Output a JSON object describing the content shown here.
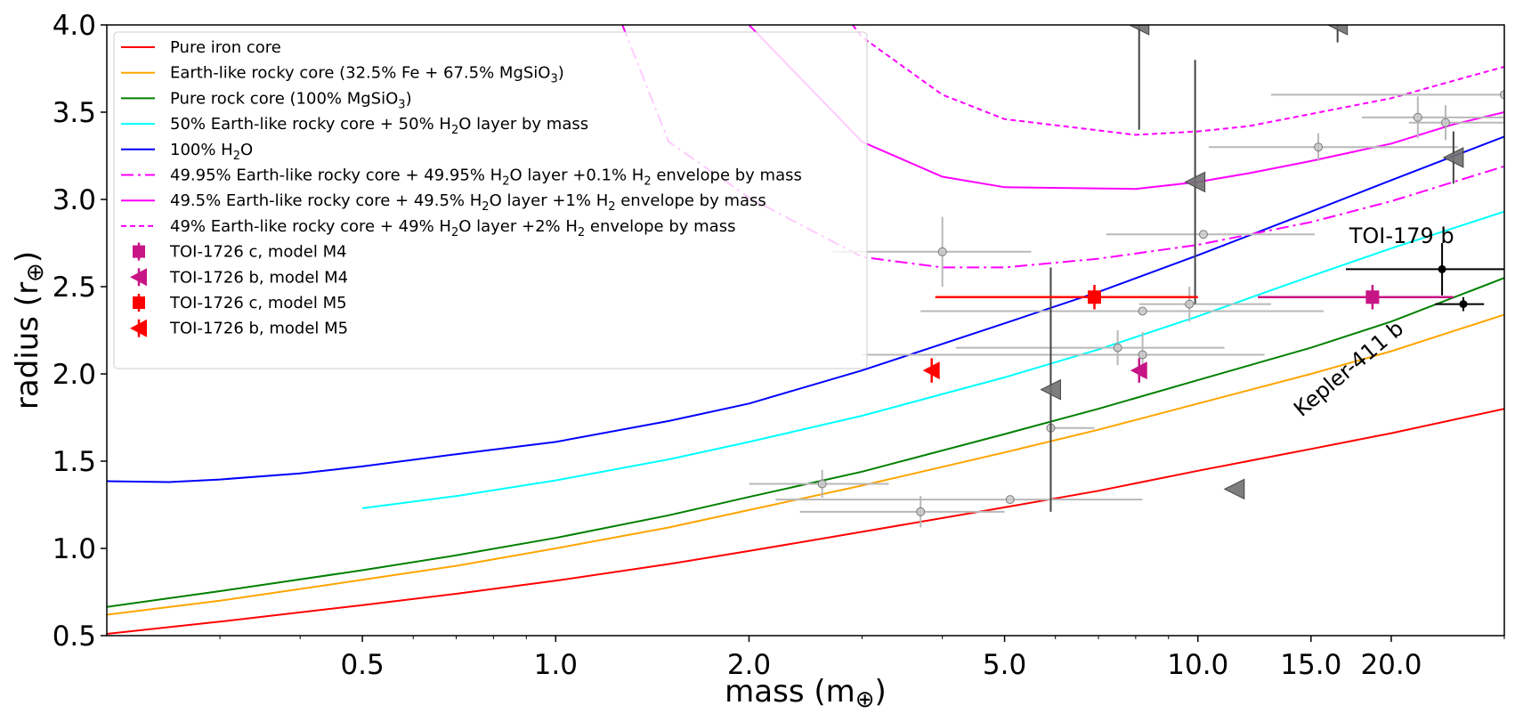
{
  "chart_data": {
    "type": "line",
    "xscale": "log",
    "xlim": [
      0.2,
      30
    ],
    "ylim": [
      0.5,
      4.0
    ],
    "xlabel": "mass (m",
    "xlabel_symbol": "⊕",
    "xlabel_close": ")",
    "ylabel": "radius (r",
    "ylabel_symbol": "⊕",
    "ylabel_close": ")",
    "xticks": [
      0.5,
      1.0,
      2.0,
      5.0,
      10.0,
      15.0,
      20.0
    ],
    "xtick_labels": [
      "0.5",
      "1.0",
      "2.0",
      "5.0",
      "10.0",
      "15.0",
      "20.0"
    ],
    "yticks": [
      0.5,
      1.0,
      1.5,
      2.0,
      2.5,
      3.0,
      3.5,
      4.0
    ],
    "ytick_labels": [
      "0.5",
      "1.0",
      "1.5",
      "2.0",
      "2.5",
      "3.0",
      "3.5",
      "4.0"
    ],
    "legend_position": "top-left",
    "series": [
      {
        "name": "Pure iron core",
        "legend": {
          "pre": "Pure iron core"
        },
        "color": "#ff0000",
        "dash": "",
        "x": [
          0.2,
          0.3,
          0.5,
          0.7,
          1.0,
          1.5,
          2.0,
          3.0,
          5.0,
          7.0,
          10.0,
          15.0,
          20.0,
          30.0
        ],
        "y": [
          0.51,
          0.58,
          0.675,
          0.74,
          0.815,
          0.91,
          0.985,
          1.095,
          1.235,
          1.33,
          1.445,
          1.57,
          1.66,
          1.8
        ]
      },
      {
        "name": "Earth-like rocky core",
        "legend": {
          "pre": "Earth-like rocky core (32.5% Fe + 67.5% MgSiO",
          "sub": "3",
          "post": ")"
        },
        "color": "#ffa500",
        "dash": "",
        "x": [
          0.2,
          0.3,
          0.5,
          0.7,
          1.0,
          1.5,
          2.0,
          3.0,
          5.0,
          7.0,
          10.0,
          15.0,
          20.0,
          30.0
        ],
        "y": [
          0.62,
          0.7,
          0.82,
          0.9,
          1.0,
          1.12,
          1.22,
          1.36,
          1.55,
          1.68,
          1.83,
          2.0,
          2.13,
          2.34
        ]
      },
      {
        "name": "Pure rock core",
        "legend": {
          "pre": "Pure rock core (100% MgSiO",
          "sub": "3",
          "post": ")"
        },
        "color": "#008000",
        "dash": "",
        "x": [
          0.2,
          0.3,
          0.5,
          0.7,
          1.0,
          1.5,
          2.0,
          3.0,
          5.0,
          7.0,
          10.0,
          15.0,
          20.0,
          30.0
        ],
        "y": [
          0.665,
          0.755,
          0.875,
          0.96,
          1.06,
          1.19,
          1.295,
          1.44,
          1.655,
          1.8,
          1.965,
          2.15,
          2.3,
          2.55
        ]
      },
      {
        "name": "50% Earth-like rocky core + 50% H2O",
        "legend": {
          "pre": "50% Earth-like rocky core + 50% H",
          "sub": "2",
          "post": "O layer by mass"
        },
        "color": "#00ffff",
        "dash": "",
        "x": [
          0.5,
          0.7,
          1.0,
          1.5,
          2.0,
          3.0,
          5.0,
          7.0,
          10.0,
          15.0,
          20.0,
          30.0
        ],
        "y": [
          1.23,
          1.3,
          1.39,
          1.51,
          1.61,
          1.76,
          1.98,
          2.14,
          2.33,
          2.56,
          2.72,
          2.93
        ]
      },
      {
        "name": "100% H2O",
        "legend": {
          "pre": "100% H",
          "sub": "2",
          "post": "O"
        },
        "color": "#0000ff",
        "dash": "",
        "x": [
          0.2,
          0.25,
          0.3,
          0.4,
          0.5,
          0.7,
          1.0,
          1.5,
          2.0,
          3.0,
          5.0,
          7.0,
          10.0,
          15.0,
          20.0,
          30.0
        ],
        "y": [
          1.385,
          1.38,
          1.395,
          1.43,
          1.47,
          1.54,
          1.61,
          1.73,
          1.83,
          2.02,
          2.29,
          2.47,
          2.68,
          2.93,
          3.11,
          3.36
        ]
      },
      {
        "name": "+0.1% H2 envelope",
        "legend": {
          "pre": "49.95% Earth-like rocky core + 49.95% H",
          "sub": "2",
          "mid": "O layer +0.1% H",
          "sub2": "2",
          "post": " envelope by mass"
        },
        "color": "#ff00ff",
        "dash": "14,5,3,5",
        "x": [
          1.27,
          1.5,
          2.0,
          3.0,
          4.0,
          5.0,
          7.0,
          10.0,
          15.0,
          20.0,
          30.0
        ],
        "y": [
          4.0,
          3.33,
          3.01,
          2.67,
          2.61,
          2.61,
          2.66,
          2.74,
          2.87,
          2.99,
          3.19
        ]
      },
      {
        "name": "+1% H2 envelope",
        "legend": {
          "pre": "49.5% Earth-like rocky core + 49.5% H",
          "sub": "2",
          "mid": "O layer +1% H",
          "sub2": "2",
          "post": " envelope by mass"
        },
        "color": "#ff00ff",
        "dash": "",
        "x": [
          2.0,
          3.0,
          4.0,
          5.0,
          8.0,
          10.0,
          12.0,
          15.0,
          20.0,
          25.0,
          30.0
        ],
        "y": [
          4.0,
          3.33,
          3.13,
          3.07,
          3.06,
          3.1,
          3.15,
          3.22,
          3.32,
          3.43,
          3.5
        ]
      },
      {
        "name": "+2% H2 envelope",
        "legend": {
          "pre": "49% Earth-like rocky core + 49% H",
          "sub": "2",
          "mid": "O layer +2% H",
          "sub2": "2",
          "post": " envelope by mass"
        },
        "color": "#ff00ff",
        "dash": "6,4",
        "x": [
          2.9,
          3.0,
          4.0,
          5.0,
          8.0,
          10.0,
          12.0,
          15.0,
          20.0,
          25.0,
          30.0
        ],
        "y": [
          4.0,
          3.93,
          3.6,
          3.46,
          3.37,
          3.39,
          3.42,
          3.49,
          3.58,
          3.68,
          3.76
        ]
      }
    ],
    "toi_points": [
      {
        "name": "TOI-1726 c, model M4",
        "legend": {
          "pre": "TOI-1726 c, model M4"
        },
        "marker": "square",
        "color": "#c71585",
        "x": 18.7,
        "y": 2.44,
        "xerr": [
          6.3,
          6.3
        ],
        "yerr": [
          0.07,
          0.07
        ]
      },
      {
        "name": "TOI-1726 b, model M4",
        "legend": {
          "pre": "TOI-1726 b, model M4"
        },
        "marker": "triangle-left",
        "color": "#c71585",
        "x": 8.1,
        "y": 2.02,
        "xerr": [
          0,
          0
        ],
        "yerr": [
          0.07,
          0.07
        ]
      },
      {
        "name": "TOI-1726 c, model M5",
        "legend": {
          "pre": "TOI-1726 c, model M5"
        },
        "marker": "square",
        "color": "#ff0000",
        "x": 6.9,
        "y": 2.44,
        "xerr": [
          3.0,
          3.1
        ],
        "yerr": [
          0.07,
          0.07
        ]
      },
      {
        "name": "TOI-1726 b, model M5",
        "legend": {
          "pre": "TOI-1726 b, model M5"
        },
        "marker": "triangle-left",
        "color": "#ff0000",
        "x": 3.85,
        "y": 2.02,
        "xerr": [
          0,
          0
        ],
        "yerr": [
          0.07,
          0.07
        ]
      }
    ],
    "grey_points": [
      {
        "x": 2.6,
        "y": 1.37,
        "xerr": [
          0.6,
          0.7
        ],
        "yerr": [
          0.08,
          0.08
        ]
      },
      {
        "x": 3.7,
        "y": 1.21,
        "xerr": [
          1.3,
          1.3
        ],
        "yerr": [
          0.09,
          0.09
        ]
      },
      {
        "x": 5.1,
        "y": 1.28,
        "xerr": [
          2.9,
          3.1
        ],
        "yerr": [
          0.0,
          0.0
        ]
      },
      {
        "x": 4.0,
        "y": 2.7,
        "xerr": [
          1.3,
          1.5
        ],
        "yerr": [
          0.2,
          0.2
        ]
      },
      {
        "x": 5.9,
        "y": 1.69,
        "xerr": [
          0.0,
          1.0
        ],
        "yerr": [
          0.08,
          0.08
        ]
      },
      {
        "x": 7.5,
        "y": 2.15,
        "xerr": [
          3.3,
          3.5
        ],
        "yerr": [
          0.1,
          0.1
        ]
      },
      {
        "x": 8.2,
        "y": 2.11,
        "xerr": [
          5.2,
          4.5
        ],
        "yerr": [
          0.13,
          0.13
        ]
      },
      {
        "x": 8.2,
        "y": 2.36,
        "xerr": [
          4.5,
          7.5
        ],
        "yerr": [
          0.0,
          0.0
        ]
      },
      {
        "x": 9.7,
        "y": 2.4,
        "xerr": [
          1.6,
          3.3
        ],
        "yerr": [
          0.1,
          0.1
        ]
      },
      {
        "x": 10.2,
        "y": 2.8,
        "xerr": [
          3.0,
          5.0
        ],
        "yerr": [
          0.0,
          0.0
        ]
      },
      {
        "x": 15.4,
        "y": 3.3,
        "xerr": [
          5.0,
          10.0
        ],
        "yerr": [
          0.08,
          0.08
        ]
      },
      {
        "x": 22.0,
        "y": 3.47,
        "xerr": [
          4.0,
          8.0
        ],
        "yerr": [
          0.12,
          0.12
        ]
      },
      {
        "x": 24.3,
        "y": 3.44,
        "xerr": [
          3.0,
          6.0
        ],
        "yerr": [
          0.1,
          0.1
        ]
      },
      {
        "x": 30.0,
        "y": 3.6,
        "xerr": [
          17.0,
          0.0
        ],
        "yerr": [
          0.0,
          0.0
        ]
      }
    ],
    "upper_limit_markers": [
      {
        "x": 9.9,
        "y": 3.1,
        "yerr": [
          0.7,
          0.7
        ]
      },
      {
        "x": 5.9,
        "y": 1.91,
        "yerr": [
          0.7,
          0.7
        ]
      },
      {
        "x": 11.4,
        "y": 1.34,
        "yerr": [
          0.0,
          0.0
        ]
      },
      {
        "x": 25.0,
        "y": 3.24,
        "yerr": [
          0.15,
          0.15
        ]
      },
      {
        "x": 8.1,
        "y": 4.0,
        "yerr": [
          0.6,
          0.0
        ]
      },
      {
        "x": 16.5,
        "y": 4.0,
        "yerr": [
          0.1,
          0.0
        ]
      }
    ],
    "black_points": [
      {
        "name": "TOI-179 b",
        "x": 24.0,
        "y": 2.6,
        "xerr": [
          7.0,
          6.0
        ],
        "yerr": [
          0.15,
          0.15
        ]
      },
      {
        "name": "Kepler-411 b",
        "x": 25.9,
        "y": 2.4,
        "xerr": [
          2.5,
          2.0
        ],
        "yerr": [
          0.04,
          0.04
        ]
      }
    ],
    "annotations": [
      {
        "text": "TOI-179 b",
        "x": 17.2,
        "y": 2.75,
        "rotate": 0
      },
      {
        "text": "Kepler-411 b",
        "x": 14.5,
        "y": 1.75,
        "rotate": -40
      }
    ]
  }
}
